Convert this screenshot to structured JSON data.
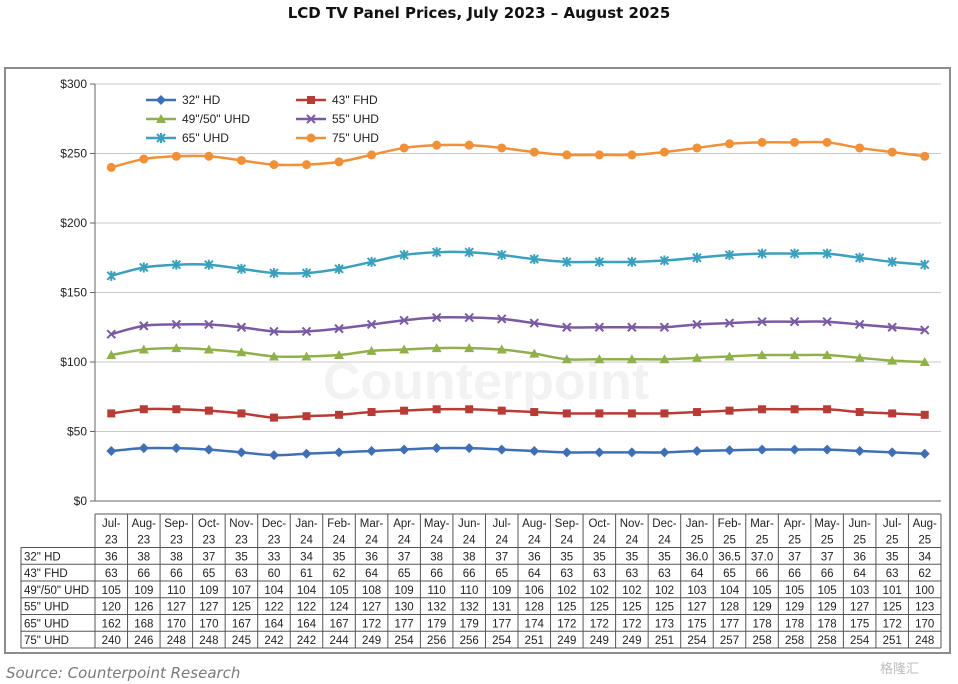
{
  "title": "LCD TV Panel Prices, July 2023 – August 2025",
  "source": "Source: Counterpoint Research",
  "watermark": "Counterpoint",
  "corner_logo": "格隆汇",
  "chart_data": {
    "type": "line",
    "title": "",
    "xlabel": "",
    "ylabel": "",
    "ylim": [
      0,
      300
    ],
    "yticks": [
      "$0",
      "$50",
      "$100",
      "$150",
      "$200",
      "$250",
      "$300"
    ],
    "grid": true,
    "legend_position": "top-left",
    "categories": [
      [
        "Jul-",
        "23"
      ],
      [
        "Aug-",
        "23"
      ],
      [
        "Sep-",
        "23"
      ],
      [
        "Oct-",
        "23"
      ],
      [
        "Nov-",
        "23"
      ],
      [
        "Dec-",
        "23"
      ],
      [
        "Jan-",
        "24"
      ],
      [
        "Feb-",
        "24"
      ],
      [
        "Mar-",
        "24"
      ],
      [
        "Apr-",
        "24"
      ],
      [
        "May-",
        "24"
      ],
      [
        "Jun-",
        "24"
      ],
      [
        "Jul-",
        "24"
      ],
      [
        "Aug-",
        "24"
      ],
      [
        "Sep-",
        "24"
      ],
      [
        "Oct-",
        "24"
      ],
      [
        "Nov-",
        "24"
      ],
      [
        "Dec-",
        "24"
      ],
      [
        "Jan-",
        "25"
      ],
      [
        "Feb-",
        "25"
      ],
      [
        "Mar-",
        "25"
      ],
      [
        "Apr-",
        "25"
      ],
      [
        "May-",
        "25"
      ],
      [
        "Jun-",
        "25"
      ],
      [
        "Jul-",
        "25"
      ],
      [
        "Aug-",
        "25"
      ]
    ],
    "series": [
      {
        "name": "32\" HD",
        "color": "#3f6fb5",
        "marker": "diamond",
        "values": [
          36,
          38,
          38,
          37,
          35,
          33,
          34,
          35,
          36,
          37,
          38,
          38,
          37,
          36,
          35,
          35,
          35,
          35,
          36.0,
          36.5,
          37.0,
          37,
          37,
          36,
          35,
          34
        ],
        "labels": [
          "36",
          "38",
          "38",
          "37",
          "35",
          "33",
          "34",
          "35",
          "36",
          "37",
          "38",
          "38",
          "37",
          "36",
          "35",
          "35",
          "35",
          "35",
          "36.0",
          "36.5",
          "37.0",
          "37",
          "37",
          "36",
          "35",
          "34"
        ]
      },
      {
        "name": "43\" FHD",
        "color": "#b83b36",
        "marker": "square",
        "values": [
          63,
          66,
          66,
          65,
          63,
          60,
          61,
          62,
          64,
          65,
          66,
          66,
          65,
          64,
          63,
          63,
          63,
          63,
          64,
          65,
          66,
          66,
          66,
          64,
          63,
          62
        ],
        "labels": [
          "63",
          "66",
          "66",
          "65",
          "63",
          "60",
          "61",
          "62",
          "64",
          "65",
          "66",
          "66",
          "65",
          "64",
          "63",
          "63",
          "63",
          "63",
          "64",
          "65",
          "66",
          "66",
          "66",
          "64",
          "63",
          "62"
        ]
      },
      {
        "name": "49\"/50\" UHD",
        "color": "#8fb04a",
        "marker": "triangle",
        "values": [
          105,
          109,
          110,
          109,
          107,
          104,
          104,
          105,
          108,
          109,
          110,
          110,
          109,
          106,
          102,
          102,
          102,
          102,
          103,
          104,
          105,
          105,
          105,
          103,
          101,
          100
        ],
        "labels": [
          "105",
          "109",
          "110",
          "109",
          "107",
          "104",
          "104",
          "105",
          "108",
          "109",
          "110",
          "110",
          "109",
          "106",
          "102",
          "102",
          "102",
          "102",
          "103",
          "104",
          "105",
          "105",
          "105",
          "103",
          "101",
          "100"
        ]
      },
      {
        "name": "55\" UHD",
        "color": "#7a5aa3",
        "marker": "x",
        "values": [
          120,
          126,
          127,
          127,
          125,
          122,
          122,
          124,
          127,
          130,
          132,
          132,
          131,
          128,
          125,
          125,
          125,
          125,
          127,
          128,
          129,
          129,
          129,
          127,
          125,
          123
        ],
        "labels": [
          "120",
          "126",
          "127",
          "127",
          "125",
          "122",
          "122",
          "124",
          "127",
          "130",
          "132",
          "132",
          "131",
          "128",
          "125",
          "125",
          "125",
          "125",
          "127",
          "128",
          "129",
          "129",
          "129",
          "127",
          "125",
          "123"
        ]
      },
      {
        "name": "65\" UHD",
        "color": "#3aa0bd",
        "marker": "star",
        "values": [
          162,
          168,
          170,
          170,
          167,
          164,
          164,
          167,
          172,
          177,
          179,
          179,
          177,
          174,
          172,
          172,
          172,
          173,
          175,
          177,
          178,
          178,
          178,
          175,
          172,
          170
        ],
        "labels": [
          "162",
          "168",
          "170",
          "170",
          "167",
          "164",
          "164",
          "167",
          "172",
          "177",
          "179",
          "179",
          "177",
          "174",
          "172",
          "172",
          "172",
          "173",
          "175",
          "177",
          "178",
          "178",
          "178",
          "175",
          "172",
          "170"
        ]
      },
      {
        "name": "75\" UHD",
        "color": "#f0913a",
        "marker": "circle",
        "values": [
          240,
          246,
          248,
          248,
          245,
          242,
          242,
          244,
          249,
          254,
          256,
          256,
          254,
          251,
          249,
          249,
          249,
          251,
          254,
          257,
          258,
          258,
          258,
          254,
          251,
          248
        ],
        "labels": [
          "240",
          "246",
          "248",
          "248",
          "245",
          "242",
          "242",
          "244",
          "249",
          "254",
          "256",
          "256",
          "254",
          "251",
          "249",
          "249",
          "249",
          "251",
          "254",
          "257",
          "258",
          "258",
          "258",
          "254",
          "251",
          "248"
        ]
      }
    ]
  }
}
